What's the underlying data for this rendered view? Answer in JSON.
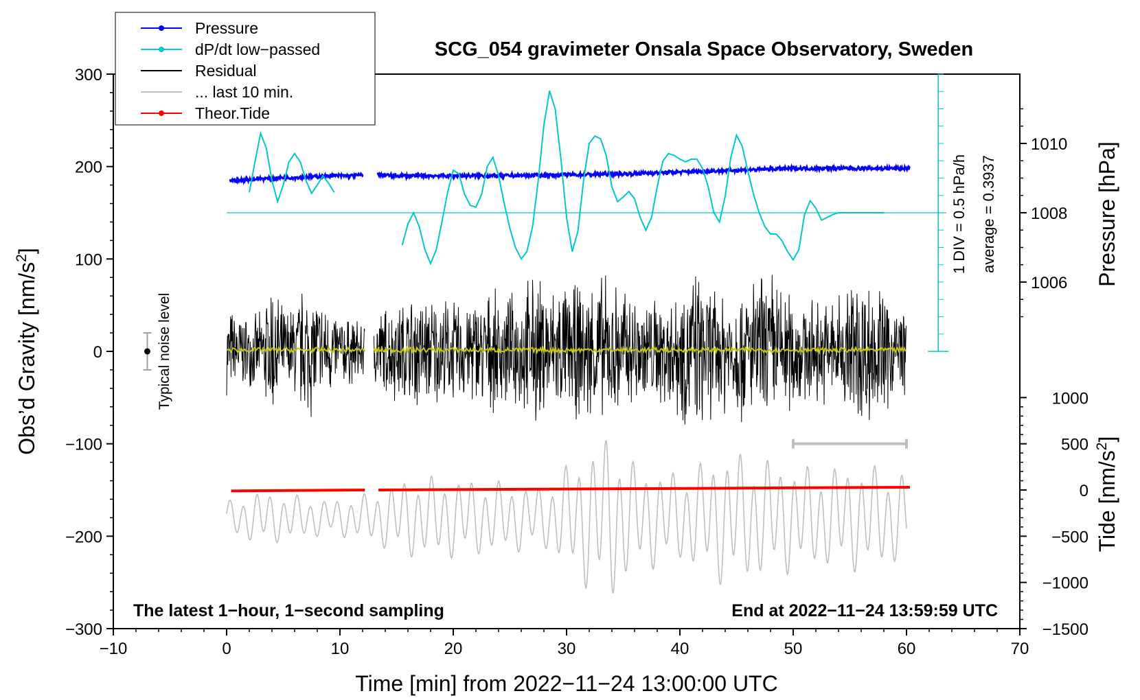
{
  "chart_data": {
    "type": "line",
    "title": "SCG_054 gravimeter Onsala Space Observatory, Sweden",
    "xlabel": "Time [min] from 2022−11−24 13:00:00 UTC",
    "ylabel": "Obs’d Gravity [nm/s²]",
    "ylabel_main": "Obs’d Gravity [nm/s",
    "ylabel_sup": "2",
    "ylabel_end": "]",
    "y2label": "Pressure [hPa]",
    "y3label_main": "Tide [nm/s",
    "y3label_sup": "2",
    "y3label_end": "]",
    "xlim": [
      -10,
      70
    ],
    "ylim": [
      -300,
      300
    ],
    "xticks": [
      -10,
      0,
      10,
      20,
      30,
      40,
      50,
      60,
      70
    ],
    "xtick_labels": [
      "−10",
      "0",
      "10",
      "20",
      "30",
      "40",
      "50",
      "60",
      "70"
    ],
    "yticks": [
      300,
      200,
      100,
      0,
      -100,
      -200,
      -300
    ],
    "ytick_labels": [
      "300",
      "200",
      "100",
      "0",
      "−100",
      "−200",
      "−300"
    ],
    "pressure_axis": {
      "ticks": [
        1010,
        1008,
        1006
      ],
      "tick_labels": [
        "1010",
        "1008",
        "1006"
      ],
      "gravity_at_1008": 150,
      "gravity_per_hPa": 37.5
    },
    "tide_axis": {
      "ticks": [
        1000,
        500,
        0,
        -500,
        -1000,
        -1500
      ],
      "tick_labels": [
        "1000",
        "500",
        "0",
        "−500",
        "−1000",
        "−1500"
      ],
      "gravity_at_zero": -150,
      "gravity_per_unit": 0.1
    },
    "dpdt_scale": {
      "label": "1 DIV = 0.5 hPa/h",
      "average_label": "average = 0.3937",
      "x": 62.8,
      "y_range": [
        0,
        300
      ],
      "baseline_y": 150
    },
    "annotations": {
      "bottom_left": "The latest 1−hour, 1−second sampling",
      "bottom_right": "End at 2022−11−24 13:59:59 UTC",
      "noise_label": "Typical noise level",
      "noise_bar": {
        "x": -7,
        "y": 0,
        "halfwidth": 20
      },
      "last10_bar": {
        "x_start": 50,
        "x_end": 60,
        "y": -100
      }
    },
    "legend": [
      {
        "name": "Pressure",
        "color": "#0000ff",
        "style": "line-dot"
      },
      {
        "name": "dP/dt low−passed",
        "color": "#00c8c8",
        "style": "line-dot"
      },
      {
        "name": "Residual",
        "color": "#000000",
        "style": "line"
      },
      {
        "name": "... last 10 min.",
        "color": "#bfbfbf",
        "style": "line"
      },
      {
        "name": "Theor.Tide",
        "color": "#ff0000",
        "style": "line-dot"
      }
    ],
    "series": [
      {
        "name": "Pressure",
        "axis": "pressure",
        "color": "#0000ff",
        "segments": [
          {
            "x": [
              0.3,
              1,
              2,
              3,
              4,
              5,
              6,
              7,
              8,
              9,
              10,
              11,
              12.1
            ],
            "y": [
              185,
              185,
              186,
              187,
              187,
              188,
              188,
              189,
              189,
              190,
              190,
              190,
              191
            ]
          },
          {
            "x": [
              13.3,
              15,
              20,
              25,
              30,
              35,
              40,
              45,
              50,
              55,
              60.3
            ],
            "y": [
              191,
              190,
              190,
              190,
              191,
              192,
              194,
              196,
              198,
              198,
              198
            ]
          }
        ]
      },
      {
        "name": "dP/dt low−passed",
        "axis": "gravity",
        "color": "#00c8c8",
        "segments": [
          {
            "x": [
              2,
              2.5,
              3,
              3.5,
              4,
              4.5,
              5,
              5.5,
              6,
              6.5,
              7,
              7.5,
              8,
              8.5,
              9,
              9.5
            ],
            "y": [
              172,
              205,
              236,
              220,
              185,
              162,
              180,
              205,
              214,
              205,
              185,
              171,
              180,
              190,
              182,
              172
            ]
          },
          {
            "x": [
              15.5,
              16,
              16.5,
              17,
              17.5,
              18,
              18.5,
              19,
              19.5,
              20,
              20.5,
              21,
              21.5,
              22,
              22.5,
              23,
              23.5,
              24,
              24.5,
              25,
              25.5,
              26,
              26.5,
              27,
              27.5,
              28,
              28.5,
              29,
              29.5,
              30,
              30.5,
              31,
              31.5,
              32,
              32.5,
              33,
              33.5,
              34,
              34.5,
              35,
              35.5,
              36,
              36.5,
              37,
              37.5,
              38,
              38.5,
              39,
              39.5,
              40,
              40.5,
              41,
              41.5,
              42,
              42.5,
              43,
              43.5,
              44,
              44.5,
              45,
              45.5,
              46,
              46.5,
              47,
              47.5,
              48,
              48.5,
              49,
              49.5,
              50,
              50.5,
              51,
              51.5,
              52,
              52.5,
              53,
              53.5,
              54,
              54.5,
              55,
              55.5,
              56,
              56.5,
              57,
              57.5,
              58
            ],
            "y": [
              115,
              138,
              150,
              135,
              110,
              95,
              110,
              140,
              172,
              196,
              192,
              170,
              158,
              156,
              170,
              200,
              210,
              190,
              160,
              133,
              112,
              100,
              108,
              135,
              185,
              245,
              282,
              262,
              208,
              145,
              108,
              130,
              185,
              225,
              233,
              230,
              212,
              178,
              162,
              167,
              173,
              165,
              145,
              131,
              145,
              178,
              206,
              214,
              212,
              208,
              205,
              208,
              208,
              198,
              178,
              150,
              140,
              168,
              210,
              234,
              222,
              195,
              170,
              150,
              135,
              127,
              127,
              120,
              108,
              99,
              110,
              148,
              163,
              155,
              142,
              145,
              148,
              150,
              150,
              150,
              150,
              150,
              150,
              150,
              150,
              150
            ]
          }
        ]
      },
      {
        "name": "Residual",
        "axis": "gravity",
        "color": "#000000",
        "segments": [
          {
            "x_start": 0,
            "x_end": 12.2,
            "envelope_x": [
              0,
              1,
              2,
              3,
              4,
              5,
              6,
              7,
              8,
              9,
              10,
              11,
              12.2
            ],
            "envelope": [
              50,
              50,
              40,
              45,
              90,
              50,
              60,
              85,
              70,
              55,
              45,
              40,
              35
            ]
          },
          {
            "x_start": 13,
            "x_end": 60,
            "envelope_x": [
              13,
              15,
              17,
              20,
              23,
              25,
              27,
              29,
              31,
              33,
              35,
              37,
              39,
              41,
              43,
              45,
              47,
              48,
              50,
              52,
              54,
              55.5,
              57,
              58,
              60
            ],
            "envelope": [
              50,
              60,
              70,
              60,
              70,
              65,
              90,
              80,
              80,
              90,
              80,
              65,
              70,
              100,
              75,
              80,
              90,
              100,
              70,
              60,
              70,
              100,
              85,
              75,
              55
            ]
          }
        ]
      },
      {
        "name": "Residual low−passed",
        "axis": "gravity",
        "color": "#c8c800",
        "segments": [
          {
            "x_start": 0,
            "x_end": 12.2,
            "amplitude": 2.5
          },
          {
            "x_start": 13,
            "x_end": 60,
            "amplitude": 2.5
          }
        ]
      },
      {
        "name": "... last 10 min.",
        "axis": "gravity",
        "color": "#bfbfbf",
        "x_start": 0,
        "x_end": 60,
        "center": -180,
        "envelope_x": [
          0,
          3,
          6,
          9,
          12,
          16,
          20,
          24,
          28,
          32,
          34,
          36,
          40,
          44,
          48,
          52,
          56,
          60
        ],
        "envelope": [
          18,
          30,
          25,
          20,
          25,
          45,
          45,
          40,
          35,
          80,
          95,
          60,
          50,
          75,
          65,
          55,
          60,
          50
        ]
      },
      {
        "name": "Theor.Tide",
        "axis": "gravity",
        "color": "#ff0000",
        "segments": [
          {
            "x": [
              0.4,
              12.2
            ],
            "y": [
              -151,
              -150
            ]
          },
          {
            "x": [
              13.4,
              60.3
            ],
            "y": [
              -150,
              -147
            ]
          }
        ]
      }
    ]
  }
}
